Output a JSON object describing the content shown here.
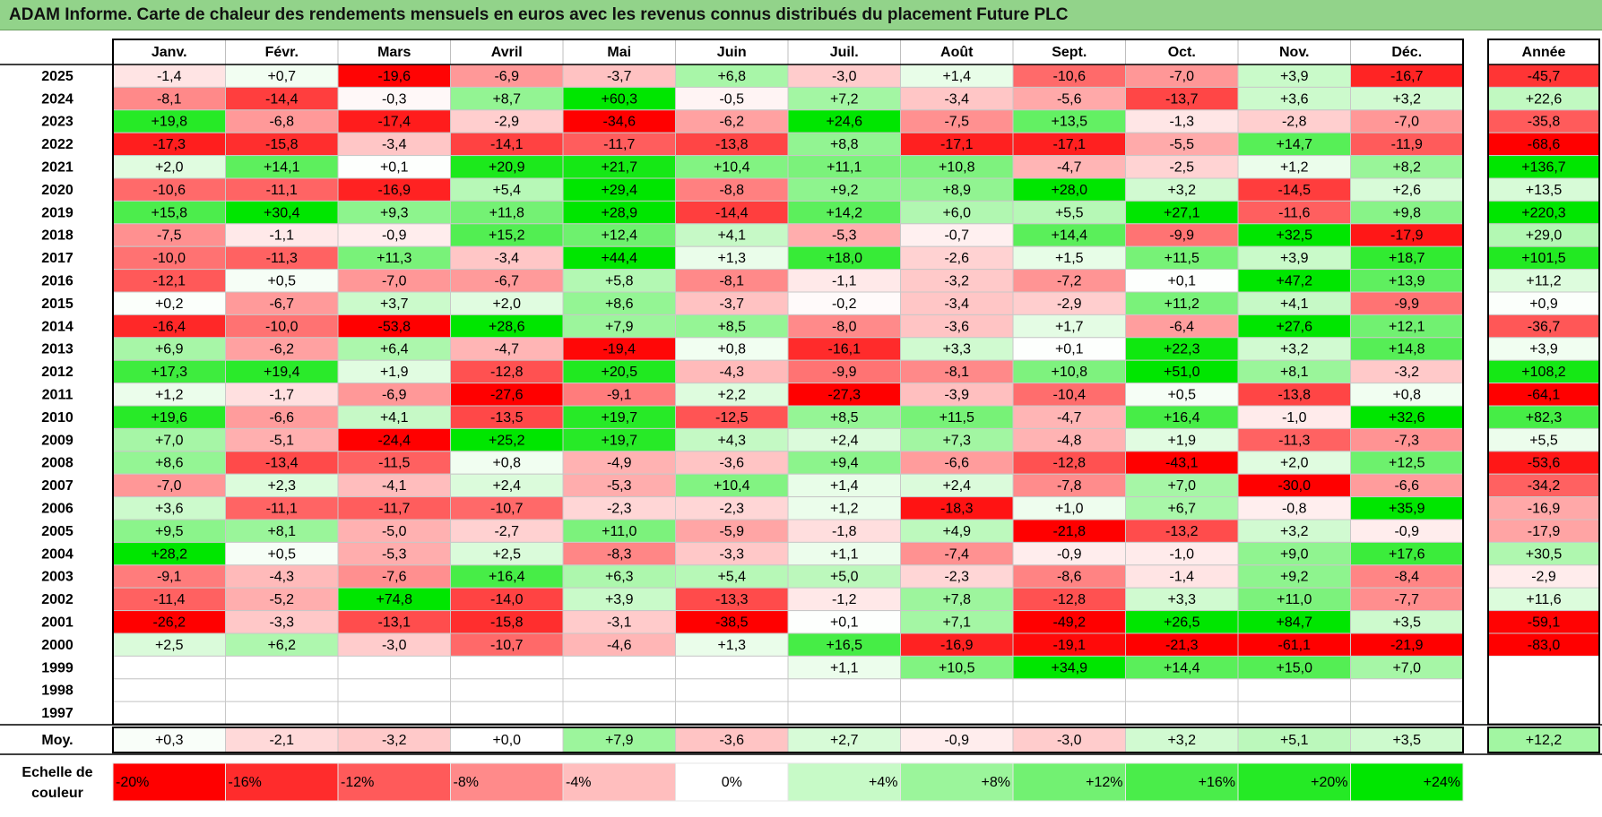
{
  "title": "ADAM Informe. Carte de chaleur des rendements mensuels en euros avec les revenus connus distribués du placement Future PLC",
  "chart_data": {
    "type": "heatmap",
    "title": "ADAM Informe. Carte de chaleur des rendements mensuels en euros avec les revenus connus distribués du placement Future PLC",
    "months": [
      "Janv.",
      "Févr.",
      "Mars",
      "Avril",
      "Mai",
      "Juin",
      "Juil.",
      "Août",
      "Sept.",
      "Oct.",
      "Nov.",
      "Déc."
    ],
    "year_header": "Année",
    "rows": [
      {
        "year": "2025",
        "values": [
          "-1,4",
          "+0,7",
          "-19,6",
          "-6,9",
          "-3,7",
          "+6,8",
          "-3,0",
          "+1,4",
          "-10,6",
          "-7,0",
          "+3,9",
          "-16,7"
        ],
        "annual": "-45,7"
      },
      {
        "year": "2024",
        "values": [
          "-8,1",
          "-14,4",
          "-0,3",
          "+8,7",
          "+60,3",
          "-0,5",
          "+7,2",
          "-3,4",
          "-5,6",
          "-13,7",
          "+3,6",
          "+3,2"
        ],
        "annual": "+22,6"
      },
      {
        "year": "2023",
        "values": [
          "+19,8",
          "-6,8",
          "-17,4",
          "-2,9",
          "-34,6",
          "-6,2",
          "+24,6",
          "-7,5",
          "+13,5",
          "-1,3",
          "-2,8",
          "-7,0"
        ],
        "annual": "-35,8"
      },
      {
        "year": "2022",
        "values": [
          "-17,3",
          "-15,8",
          "-3,4",
          "-14,1",
          "-11,7",
          "-13,8",
          "+8,8",
          "-17,1",
          "-17,1",
          "-5,5",
          "+14,7",
          "-11,9"
        ],
        "annual": "-68,6"
      },
      {
        "year": "2021",
        "values": [
          "+2,0",
          "+14,1",
          "+0,1",
          "+20,9",
          "+21,7",
          "+10,4",
          "+11,1",
          "+10,8",
          "-4,7",
          "-2,5",
          "+1,2",
          "+8,2"
        ],
        "annual": "+136,7"
      },
      {
        "year": "2020",
        "values": [
          "-10,6",
          "-11,1",
          "-16,9",
          "+5,4",
          "+29,4",
          "-8,8",
          "+9,2",
          "+8,9",
          "+28,0",
          "+3,2",
          "-14,5",
          "+2,6"
        ],
        "annual": "+13,5"
      },
      {
        "year": "2019",
        "values": [
          "+15,8",
          "+30,4",
          "+9,3",
          "+11,8",
          "+28,9",
          "-14,4",
          "+14,2",
          "+6,0",
          "+5,5",
          "+27,1",
          "-11,6",
          "+9,8"
        ],
        "annual": "+220,3"
      },
      {
        "year": "2018",
        "values": [
          "-7,5",
          "-1,1",
          "-0,9",
          "+15,2",
          "+12,4",
          "+4,1",
          "-5,3",
          "-0,7",
          "+14,4",
          "-9,9",
          "+32,5",
          "-17,9"
        ],
        "annual": "+29,0"
      },
      {
        "year": "2017",
        "values": [
          "-10,0",
          "-11,3",
          "+11,3",
          "-3,4",
          "+44,4",
          "+1,3",
          "+18,0",
          "-2,6",
          "+1,5",
          "+11,5",
          "+3,9",
          "+18,7"
        ],
        "annual": "+101,5"
      },
      {
        "year": "2016",
        "values": [
          "-12,1",
          "+0,5",
          "-7,0",
          "-6,7",
          "+5,8",
          "-8,1",
          "-1,1",
          "-3,2",
          "-7,2",
          "+0,1",
          "+47,2",
          "+13,9"
        ],
        "annual": "+11,2"
      },
      {
        "year": "2015",
        "values": [
          "+0,2",
          "-6,7",
          "+3,7",
          "+2,0",
          "+8,6",
          "-3,7",
          "-0,2",
          "-3,4",
          "-2,9",
          "+11,2",
          "+4,1",
          "-9,9"
        ],
        "annual": "+0,9"
      },
      {
        "year": "2014",
        "values": [
          "-16,4",
          "-10,0",
          "-53,8",
          "+28,6",
          "+7,9",
          "+8,5",
          "-8,0",
          "-3,6",
          "+1,7",
          "-6,4",
          "+27,6",
          "+12,1"
        ],
        "annual": "-36,7"
      },
      {
        "year": "2013",
        "values": [
          "+6,9",
          "-6,2",
          "+6,4",
          "-4,7",
          "-19,4",
          "+0,8",
          "-16,1",
          "+3,3",
          "+0,1",
          "+22,3",
          "+3,2",
          "+14,8"
        ],
        "annual": "+3,9"
      },
      {
        "year": "2012",
        "values": [
          "+17,3",
          "+19,4",
          "+1,9",
          "-12,8",
          "+20,5",
          "-4,3",
          "-9,9",
          "-8,1",
          "+10,8",
          "+51,0",
          "+8,1",
          "-3,2"
        ],
        "annual": "+108,2"
      },
      {
        "year": "2011",
        "values": [
          "+1,2",
          "-1,7",
          "-6,9",
          "-27,6",
          "-9,1",
          "+2,2",
          "-27,3",
          "-3,9",
          "-10,4",
          "+0,5",
          "-13,8",
          "+0,8"
        ],
        "annual": "-64,1"
      },
      {
        "year": "2010",
        "values": [
          "+19,6",
          "-6,6",
          "+4,1",
          "-13,5",
          "+19,7",
          "-12,5",
          "+8,5",
          "+11,5",
          "-4,7",
          "+16,4",
          "-1,0",
          "+32,6"
        ],
        "annual": "+82,3"
      },
      {
        "year": "2009",
        "values": [
          "+7,0",
          "-5,1",
          "-24,4",
          "+25,2",
          "+19,7",
          "+4,3",
          "+2,4",
          "+7,3",
          "-4,8",
          "+1,9",
          "-11,3",
          "-7,3"
        ],
        "annual": "+5,5"
      },
      {
        "year": "2008",
        "values": [
          "+8,6",
          "-13,4",
          "-11,5",
          "+0,8",
          "-4,9",
          "-3,6",
          "+9,4",
          "-6,6",
          "-12,8",
          "-43,1",
          "+2,0",
          "+12,5"
        ],
        "annual": "-53,6"
      },
      {
        "year": "2007",
        "values": [
          "-7,0",
          "+2,3",
          "-4,1",
          "+2,4",
          "-5,3",
          "+10,4",
          "+1,4",
          "+2,4",
          "-7,8",
          "+7,0",
          "-30,0",
          "-6,6"
        ],
        "annual": "-34,2"
      },
      {
        "year": "2006",
        "values": [
          "+3,6",
          "-11,1",
          "-11,7",
          "-10,7",
          "-2,3",
          "-2,3",
          "+1,2",
          "-18,3",
          "+1,0",
          "+6,7",
          "-0,8",
          "+35,9"
        ],
        "annual": "-16,9"
      },
      {
        "year": "2005",
        "values": [
          "+9,5",
          "+8,1",
          "-5,0",
          "-2,7",
          "+11,0",
          "-5,9",
          "-1,8",
          "+4,9",
          "-21,8",
          "-13,2",
          "+3,2",
          "-0,9"
        ],
        "annual": "-17,9"
      },
      {
        "year": "2004",
        "values": [
          "+28,2",
          "+0,5",
          "-5,3",
          "+2,5",
          "-8,3",
          "-3,3",
          "+1,1",
          "-7,4",
          "-0,9",
          "-1,0",
          "+9,0",
          "+17,6"
        ],
        "annual": "+30,5"
      },
      {
        "year": "2003",
        "values": [
          "-9,1",
          "-4,3",
          "-7,6",
          "+16,4",
          "+6,3",
          "+5,4",
          "+5,0",
          "-2,3",
          "-8,6",
          "-1,4",
          "+9,2",
          "-8,4"
        ],
        "annual": "-2,9"
      },
      {
        "year": "2002",
        "values": [
          "-11,4",
          "-5,2",
          "+74,8",
          "-14,0",
          "+3,9",
          "-13,3",
          "-1,2",
          "+7,8",
          "-12,8",
          "+3,3",
          "+11,0",
          "-7,7"
        ],
        "annual": "+11,6"
      },
      {
        "year": "2001",
        "values": [
          "-26,2",
          "-3,3",
          "-13,1",
          "-15,8",
          "-3,1",
          "-38,5",
          "+0,1",
          "+7,1",
          "-49,2",
          "+26,5",
          "+84,7",
          "+3,5"
        ],
        "annual": "-59,1"
      },
      {
        "year": "2000",
        "values": [
          "+2,5",
          "+6,2",
          "-3,0",
          "-10,7",
          "-4,6",
          "+1,3",
          "+16,5",
          "-16,9",
          "-19,1",
          "-21,3",
          "-61,1",
          "-21,9"
        ],
        "annual": "-83,0"
      },
      {
        "year": "1999",
        "values": [
          "",
          "",
          "",
          "",
          "",
          "",
          "+1,1",
          "+10,5",
          "+34,9",
          "+14,4",
          "+15,0",
          "+7,0"
        ],
        "annual": ""
      },
      {
        "year": "1998",
        "values": [
          "",
          "",
          "",
          "",
          "",
          "",
          "",
          "",
          "",
          "",
          "",
          ""
        ],
        "annual": ""
      },
      {
        "year": "1997",
        "values": [
          "",
          "",
          "",
          "",
          "",
          "",
          "",
          "",
          "",
          "",
          "",
          ""
        ],
        "annual": ""
      }
    ],
    "average": {
      "label": "Moy.",
      "values": [
        "+0,3",
        "-2,1",
        "-3,2",
        "+0,0",
        "+7,9",
        "-3,6",
        "+2,7",
        "-0,9",
        "-3,0",
        "+3,2",
        "+5,1",
        "+3,5"
      ],
      "annual": "+12,2"
    },
    "scale": {
      "label_line1": "Echelle de",
      "label_line2": "couleur",
      "steps": [
        {
          "label": "-20%",
          "value": -20
        },
        {
          "label": "-16%",
          "value": -16
        },
        {
          "label": "-12%",
          "value": -12
        },
        {
          "label": "-8%",
          "value": -8
        },
        {
          "label": "-4%",
          "value": -4
        },
        {
          "label": "0%",
          "value": 0
        },
        {
          "label": "+4%",
          "value": 4
        },
        {
          "label": "+8%",
          "value": 8
        },
        {
          "label": "+12%",
          "value": 12
        },
        {
          "label": "+16%",
          "value": 16
        },
        {
          "label": "+20%",
          "value": 20
        },
        {
          "label": "+24%",
          "value": 24
        }
      ]
    },
    "colors": {
      "title_bg": "#92d38a",
      "negative_full": "#ff0000",
      "positive_full": "#00e600",
      "neutral": "#ffffff"
    }
  }
}
